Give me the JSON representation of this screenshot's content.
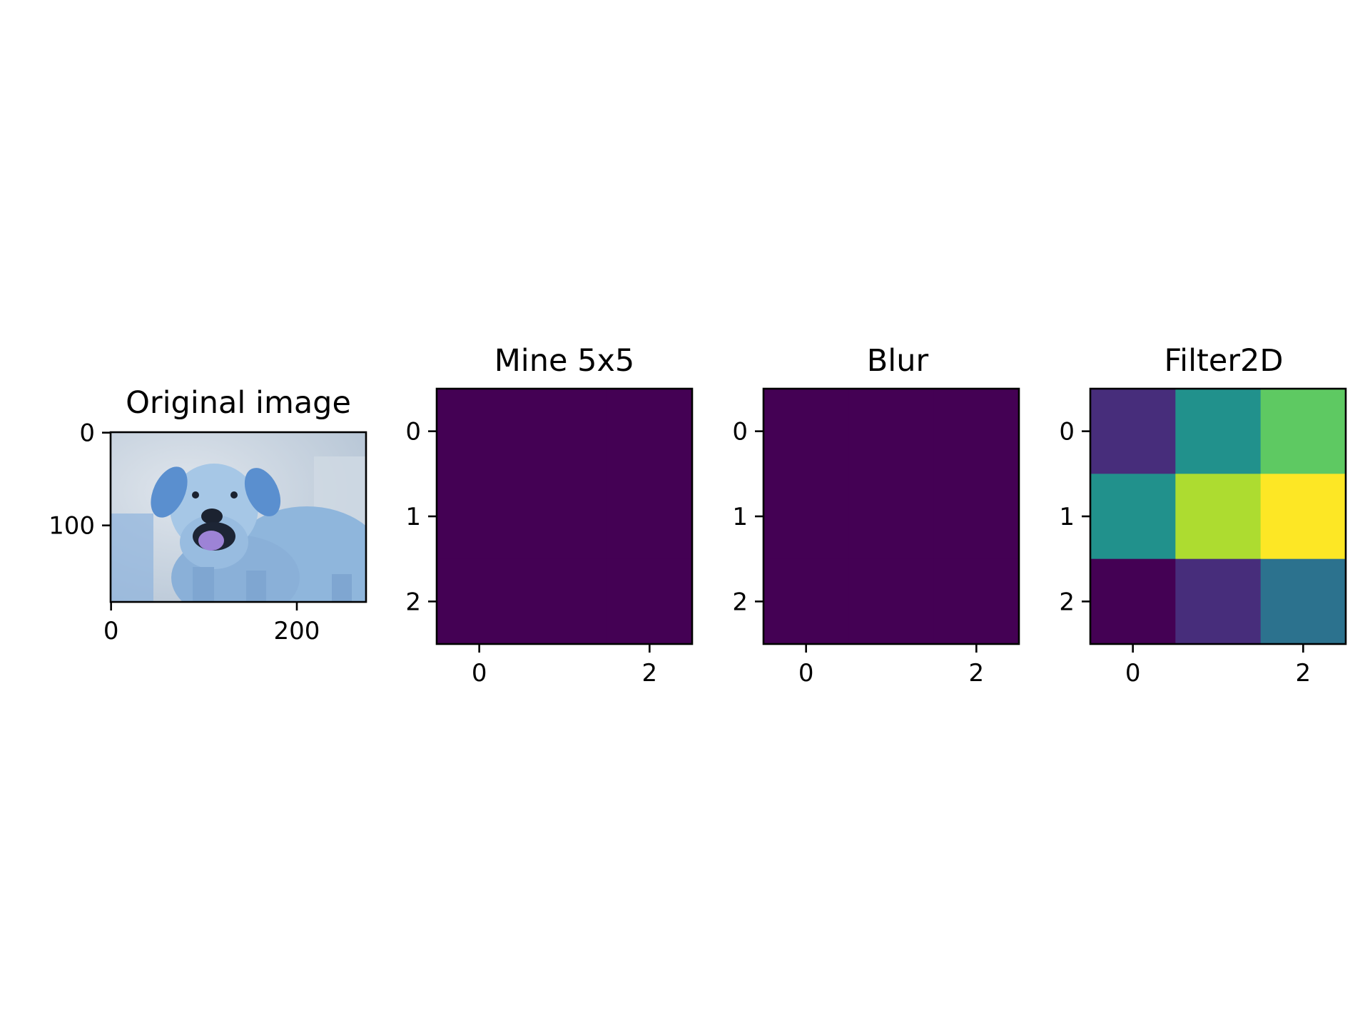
{
  "chart_data": [
    {
      "type": "image",
      "title": "Original image",
      "image_description_name": "dog-photo",
      "xlim": [
        -0.5,
        274.5
      ],
      "ylim": [
        182.5,
        -0.5
      ],
      "xticks": [
        0,
        200
      ],
      "yticks": [
        0,
        100
      ],
      "xtick_labels": [
        "0",
        "200"
      ],
      "ytick_labels": [
        "0",
        "100"
      ],
      "palette": {
        "background": "#c9d4df",
        "fur": "#9cc1e2",
        "fur_shadow": "#6f97c4",
        "ear": "#5a8fcf",
        "nose": "#1b2230",
        "tongue": "#9d83d6",
        "mouth": "#1d2535"
      }
    },
    {
      "type": "heatmap",
      "title": "Mine 5x5",
      "xticks": [
        0,
        2
      ],
      "yticks": [
        0,
        1,
        2
      ],
      "xtick_labels": [
        "0",
        "2"
      ],
      "ytick_labels": [
        "0",
        "1",
        "2"
      ],
      "xlim": [
        -0.5,
        2.5
      ],
      "ylim": [
        2.5,
        -0.5
      ],
      "colormap": "viridis",
      "values": [
        [
          0,
          0,
          0
        ],
        [
          0,
          0,
          0
        ],
        [
          0,
          0,
          0
        ]
      ],
      "vmin": 0,
      "vmax": 1
    },
    {
      "type": "heatmap",
      "title": "Blur",
      "xticks": [
        0,
        2
      ],
      "yticks": [
        0,
        1,
        2
      ],
      "xtick_labels": [
        "0",
        "2"
      ],
      "ytick_labels": [
        "0",
        "1",
        "2"
      ],
      "xlim": [
        -0.5,
        2.5
      ],
      "ylim": [
        2.5,
        -0.5
      ],
      "colormap": "viridis",
      "values": [
        [
          0,
          0,
          0
        ],
        [
          0,
          0,
          0
        ],
        [
          0,
          0,
          0
        ]
      ],
      "vmin": 0,
      "vmax": 1
    },
    {
      "type": "heatmap",
      "title": "Filter2D",
      "xticks": [
        0,
        2
      ],
      "yticks": [
        0,
        1,
        2
      ],
      "xtick_labels": [
        "0",
        "2"
      ],
      "ytick_labels": [
        "0",
        "1",
        "2"
      ],
      "xlim": [
        -0.5,
        2.5
      ],
      "ylim": [
        2.5,
        -0.5
      ],
      "colormap": "viridis",
      "values": [
        [
          1,
          4,
          6
        ],
        [
          4,
          7,
          8
        ],
        [
          0,
          1,
          3
        ]
      ],
      "vmin": 0,
      "vmax": 8
    }
  ]
}
